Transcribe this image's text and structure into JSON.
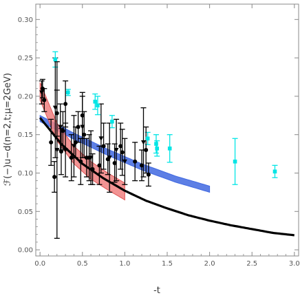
{
  "chart_data": {
    "type": "scatter",
    "title": "",
    "xlabel": "-t",
    "ylabel": "ℱ(−)u−d(n=2,t;μ=2GeV)",
    "xlim": [
      -0.05,
      3.05
    ],
    "ylim": [
      -0.008,
      0.32
    ],
    "xticks": [
      "0.0",
      "0.5",
      "1.0",
      "1.5",
      "2.0",
      "2.5",
      "3.0"
    ],
    "yticks": [
      "0.00",
      "0.05",
      "0.10",
      "0.15",
      "0.20",
      "0.25",
      "0.30"
    ],
    "grid": false,
    "legend": "none",
    "colors": {
      "black_curve": "#000000",
      "red_band": "#f08080",
      "red_band_edge": "#e05555",
      "blue_band": "#4169e1",
      "cyan": "#00e5e5",
      "red_points": "#e00000",
      "orange_points": "#ff8c00",
      "brown_points": "#8b6914",
      "errorbars": "#000000"
    },
    "curves": {
      "black": {
        "x": [
          0.0,
          0.25,
          0.5,
          0.75,
          1.0,
          1.25,
          1.5,
          1.75,
          2.0,
          2.25,
          2.5,
          2.75,
          3.0
        ],
        "y": [
          0.172,
          0.138,
          0.112,
          0.093,
          0.077,
          0.064,
          0.054,
          0.045,
          0.038,
          0.032,
          0.027,
          0.022,
          0.019
        ]
      },
      "red_band": {
        "x": [
          0.0,
          0.2,
          0.4,
          0.6,
          0.8,
          1.0
        ],
        "upper": [
          0.218,
          0.165,
          0.135,
          0.115,
          0.1,
          0.087
        ],
        "lower": [
          0.195,
          0.142,
          0.112,
          0.092,
          0.078,
          0.065
        ]
      },
      "blue_band": {
        "x": [
          0.0,
          0.4,
          0.8,
          1.2,
          1.6,
          2.0
        ],
        "upper": [
          0.175,
          0.152,
          0.131,
          0.112,
          0.096,
          0.083
        ],
        "lower": [
          0.167,
          0.144,
          0.123,
          0.104,
          0.088,
          0.075
        ]
      }
    },
    "series": [
      {
        "marker": "square",
        "color": "cyan",
        "points": [
          {
            "x": 0.18,
            "y": 0.248,
            "err": 0.01
          },
          {
            "x": 0.33,
            "y": 0.205,
            "err": 0.004
          },
          {
            "x": 0.65,
            "y": 0.193,
            "err": 0.01
          },
          {
            "x": 0.68,
            "y": 0.188,
            "err": 0.012
          },
          {
            "x": 0.85,
            "y": 0.167,
            "err": 0.008
          },
          {
            "x": 1.27,
            "y": 0.145,
            "err": 0.008
          },
          {
            "x": 1.37,
            "y": 0.138,
            "err": 0.012
          },
          {
            "x": 1.38,
            "y": 0.132,
            "err": 0.01
          },
          {
            "x": 1.53,
            "y": 0.132,
            "err": 0.018
          },
          {
            "x": 2.3,
            "y": 0.115,
            "err": 0.03
          },
          {
            "x": 2.77,
            "y": 0.102,
            "err": 0.008
          }
        ]
      },
      {
        "marker": "circle",
        "color": "brown",
        "points": [
          {
            "x": 0.03,
            "y": 0.21,
            "err": 0.012
          },
          {
            "x": 0.2,
            "y": 0.178,
            "err": 0.03
          },
          {
            "x": 0.3,
            "y": 0.19,
            "err": 0.03
          },
          {
            "x": 0.45,
            "y": 0.16,
            "err": 0.02
          },
          {
            "x": 0.5,
            "y": 0.175,
            "err": 0.03
          },
          {
            "x": 0.52,
            "y": 0.15,
            "err": 0.03
          },
          {
            "x": 0.75,
            "y": 0.135,
            "err": 0.03
          },
          {
            "x": 1.12,
            "y": 0.115,
            "err": 0.025
          },
          {
            "x": 1.25,
            "y": 0.13,
            "err": 0.03
          }
        ]
      },
      {
        "marker": "circle",
        "color": "orange",
        "points": [
          {
            "x": 0.05,
            "y": 0.195,
            "err": 0.015
          },
          {
            "x": 0.17,
            "y": 0.095,
            "err": 0.02
          },
          {
            "x": 0.27,
            "y": 0.155,
            "err": 0.025
          },
          {
            "x": 0.42,
            "y": 0.14,
            "err": 0.02
          },
          {
            "x": 0.55,
            "y": 0.12,
            "err": 0.025
          },
          {
            "x": 0.62,
            "y": 0.105,
            "err": 0.02
          },
          {
            "x": 0.8,
            "y": 0.118,
            "err": 0.02
          },
          {
            "x": 0.97,
            "y": 0.127,
            "err": 0.03
          },
          {
            "x": 1.2,
            "y": 0.11,
            "err": 0.02
          },
          {
            "x": 1.28,
            "y": 0.098,
            "err": 0.015
          }
        ]
      },
      {
        "marker": "circle",
        "color": "red",
        "points": [
          {
            "x": 0.13,
            "y": 0.14,
            "err": 0.03
          },
          {
            "x": 0.25,
            "y": 0.128,
            "err": 0.03
          },
          {
            "x": 0.37,
            "y": 0.12,
            "err": 0.03
          },
          {
            "x": 0.48,
            "y": 0.115,
            "err": 0.03
          },
          {
            "x": 0.58,
            "y": 0.12,
            "err": 0.03
          },
          {
            "x": 0.7,
            "y": 0.11,
            "err": 0.025
          },
          {
            "x": 0.88,
            "y": 0.113,
            "err": 0.025
          },
          {
            "x": 0.95,
            "y": 0.135,
            "err": 0.03
          }
        ]
      },
      {
        "marker": "triangle-down",
        "color": "black",
        "points": [
          {
            "x": 0.02,
            "y": 0.205,
            "err": 0.015
          },
          {
            "x": 0.18,
            "y": 0.185,
            "err": 0.065
          },
          {
            "x": 0.2,
            "y": 0.13,
            "err": 0.115
          },
          {
            "x": 0.24,
            "y": 0.16,
            "err": 0.03
          },
          {
            "x": 0.3,
            "y": 0.13,
            "err": 0.035
          },
          {
            "x": 0.4,
            "y": 0.135,
            "err": 0.04
          },
          {
            "x": 0.5,
            "y": 0.16,
            "err": 0.04
          },
          {
            "x": 0.6,
            "y": 0.12,
            "err": 0.035
          },
          {
            "x": 0.72,
            "y": 0.145,
            "err": 0.045
          },
          {
            "x": 0.82,
            "y": 0.12,
            "err": 0.045
          },
          {
            "x": 0.9,
            "y": 0.13,
            "err": 0.04
          },
          {
            "x": 1.0,
            "y": 0.115,
            "err": 0.03
          },
          {
            "x": 1.22,
            "y": 0.14,
            "err": 0.045
          }
        ]
      }
    ]
  }
}
